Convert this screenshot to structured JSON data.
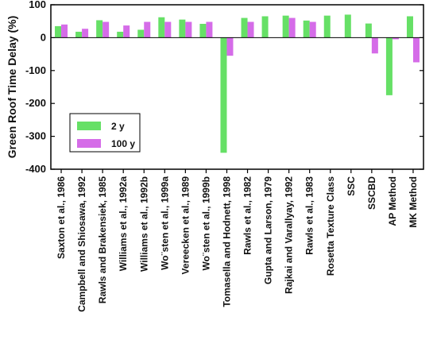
{
  "chart_data": {
    "type": "bar",
    "title": "",
    "xlabel": "",
    "ylabel": "Green Roof Time Delay (%)",
    "ylim": [
      -400,
      100
    ],
    "yticks": [
      -400,
      -300,
      -200,
      -100,
      0,
      100
    ],
    "grid": false,
    "legend_position": "left-lower",
    "categories": [
      "Saxton et al., 1986",
      "Campbell and Shiosawa, 1992",
      "Rawls and Brakensiek, 1985",
      "Williams et al., 1992a",
      "Williams et al., 1992b",
      "Wo¨sten et al., 1999a",
      "Vereecken et al., 1989",
      "Wo¨sten et al., 1999b",
      "Tomasella and Hodnett, 1998",
      "Rawls et al., 1982",
      "Gupta and Larson, 1979",
      "Rajkai and Varallyay, 1992",
      "Rawls et al., 1983",
      "Rosetta Texture Class",
      "SSC",
      "SSCBD",
      "AP Method",
      "MK Method"
    ],
    "series": [
      {
        "name": "2 y",
        "color": "#66e066",
        "values": [
          35,
          18,
          53,
          18,
          24,
          62,
          55,
          42,
          -350,
          60,
          65,
          67,
          52,
          67,
          70,
          43,
          -175,
          65
        ]
      },
      {
        "name": "100 y",
        "color": "#d56ce8",
        "values": [
          40,
          27,
          48,
          37,
          48,
          48,
          48,
          48,
          -55,
          48,
          null,
          60,
          48,
          null,
          null,
          -48,
          -5,
          -75
        ]
      }
    ]
  }
}
